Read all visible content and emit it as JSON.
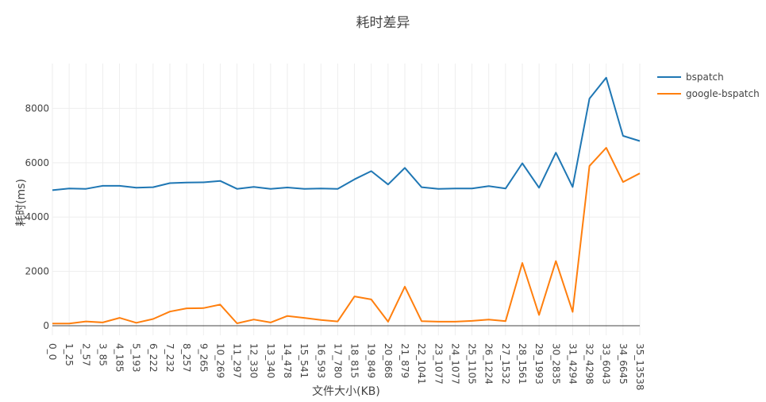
{
  "chart_data": {
    "type": "line",
    "title": "耗时差异",
    "xlabel": "文件大小(KB)",
    "ylabel": "耗时(ms)",
    "ylim": [
      -350,
      9650
    ],
    "yticks": [
      0,
      2000,
      4000,
      6000,
      8000
    ],
    "grid": true,
    "legend_position": "top-right",
    "categories": [
      "0_0",
      "1_25",
      "2_57",
      "3_85",
      "4_185",
      "5_193",
      "6_222",
      "7_232",
      "8_257",
      "9_265",
      "10_269",
      "11_297",
      "12_330",
      "13_340",
      "14_478",
      "15_541",
      "16_593",
      "17_780",
      "18_815",
      "19_849",
      "20_868",
      "21_879",
      "22_1041",
      "23_1077",
      "24_1077",
      "25_1105",
      "26_1224",
      "27_1532",
      "28_1561",
      "29_1993",
      "30_2835",
      "31_4294",
      "32_4298",
      "33_6043",
      "34_6645",
      "35_13538"
    ],
    "series": [
      {
        "name": "bspatch",
        "color": "#1f77b4",
        "values": [
          4990,
          5050,
          5040,
          5150,
          5150,
          5080,
          5100,
          5250,
          5270,
          5280,
          5330,
          5040,
          5110,
          5040,
          5090,
          5040,
          5050,
          5040,
          5390,
          5690,
          5200,
          5810,
          5100,
          5040,
          5050,
          5050,
          5140,
          5050,
          5980,
          5080,
          6370,
          5110,
          8360,
          9130,
          6990,
          6800
        ]
      },
      {
        "name": "google-bspatch",
        "color": "#ff7f0e",
        "values": [
          80,
          80,
          160,
          120,
          290,
          110,
          250,
          520,
          640,
          650,
          780,
          90,
          230,
          120,
          360,
          290,
          210,
          160,
          1080,
          970,
          150,
          1440,
          170,
          150,
          150,
          180,
          230,
          170,
          2310,
          400,
          2380,
          510,
          5880,
          6550,
          5290,
          5610
        ]
      }
    ]
  }
}
